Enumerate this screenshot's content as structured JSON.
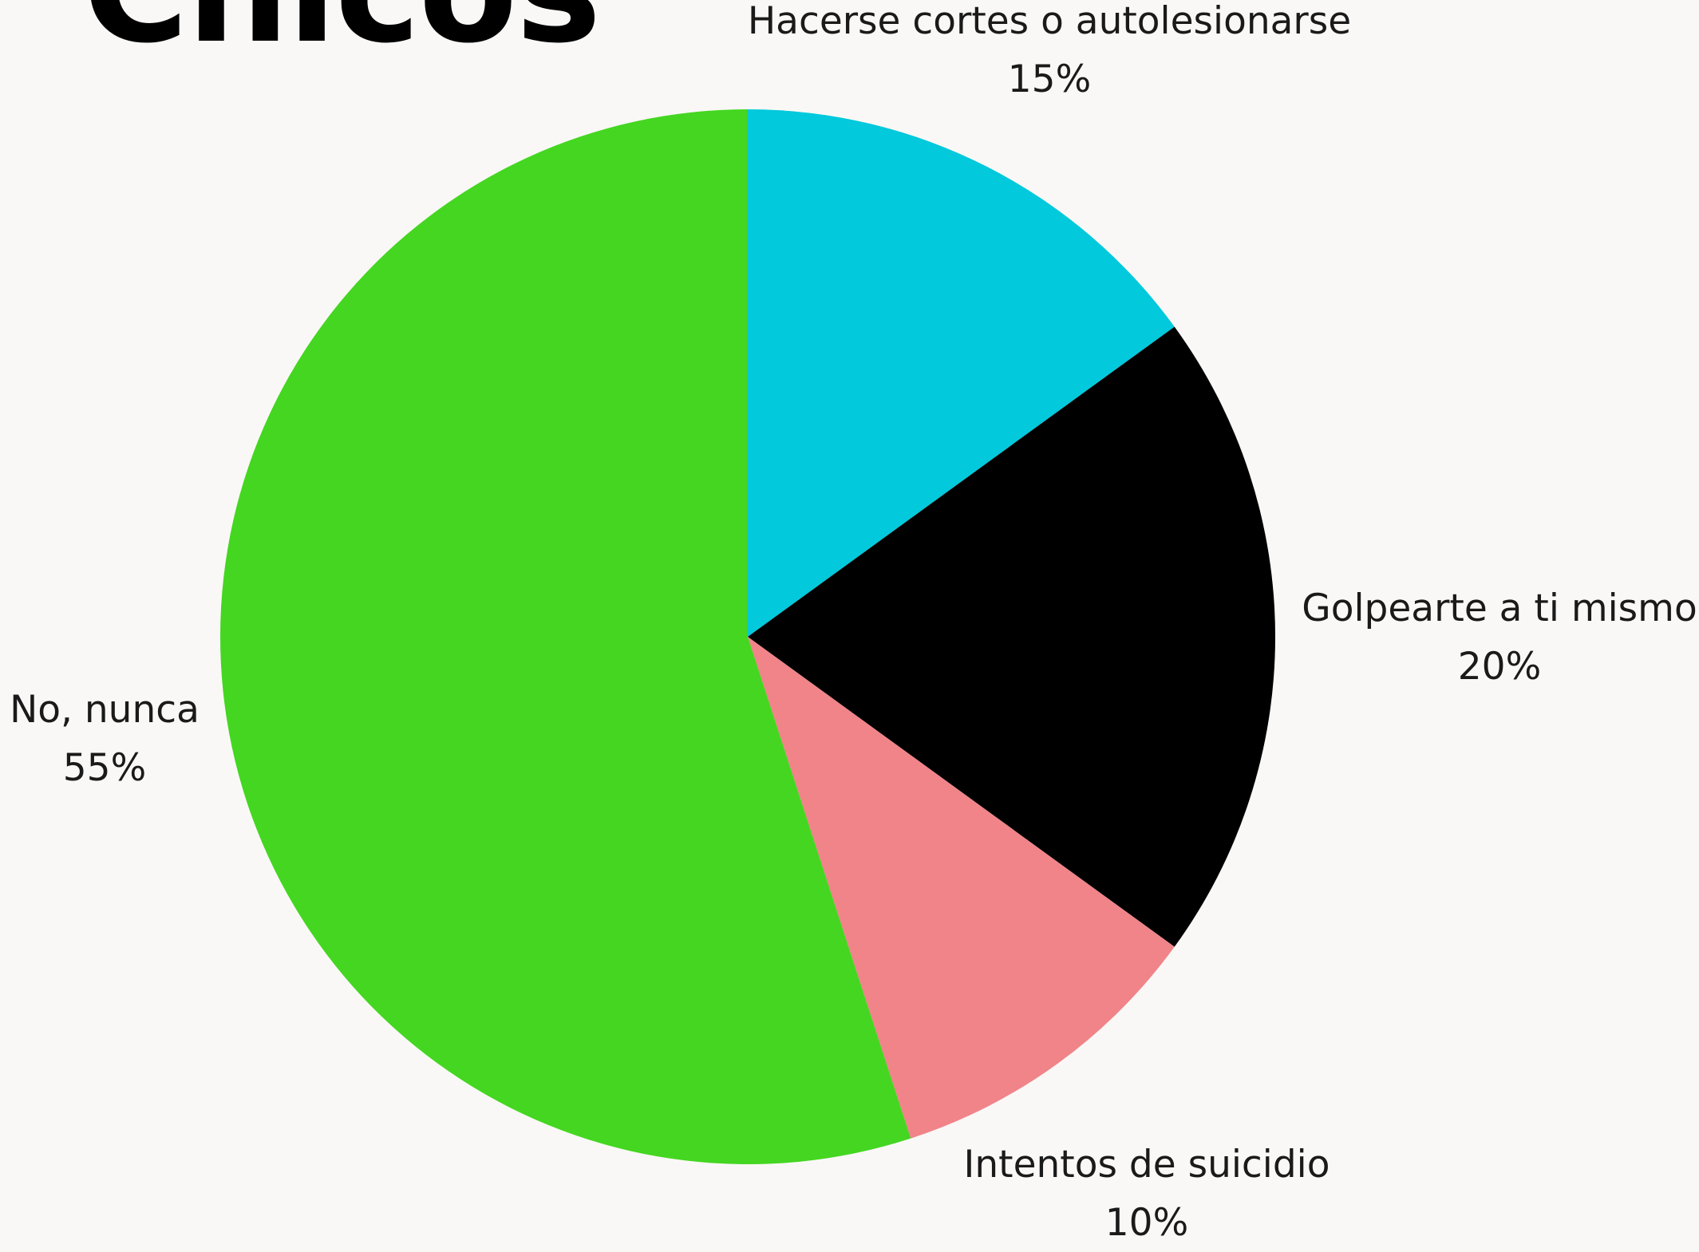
{
  "chart_data": {
    "type": "pie",
    "title": "Chicos",
    "slices": [
      {
        "label": "Hacerse cortes o autolesionarse",
        "value": 15,
        "value_label": "15%",
        "color": "#02c9dc"
      },
      {
        "label": "Golpearte a ti mismo",
        "value": 20,
        "value_label": "20%",
        "color": "#000000"
      },
      {
        "label": "Intentos de suicidio",
        "value": 10,
        "value_label": "10%",
        "color": "#f08489"
      },
      {
        "label": "No, nunca",
        "value": 55,
        "value_label": "55%",
        "color": "#44d621"
      }
    ],
    "start_angle": "12 o'clock",
    "direction": "clockwise",
    "legend": "none"
  }
}
